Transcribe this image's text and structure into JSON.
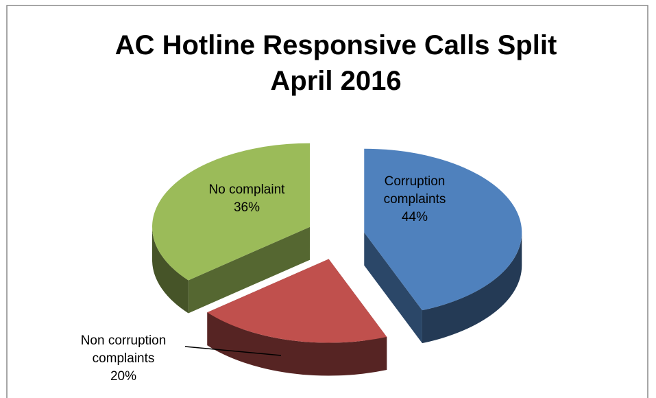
{
  "chart_data": {
    "type": "pie3d",
    "title": "AC Hotline Responsive Calls Split April 2016",
    "categories": [
      "Corruption complaints",
      "Non corruption complaints",
      "No complaint"
    ],
    "values": [
      44,
      20,
      36
    ],
    "value_labels": [
      "44%",
      "20%",
      "36%"
    ],
    "colors": [
      "#4f81bd",
      "#c0504d",
      "#9bbb59"
    ]
  }
}
